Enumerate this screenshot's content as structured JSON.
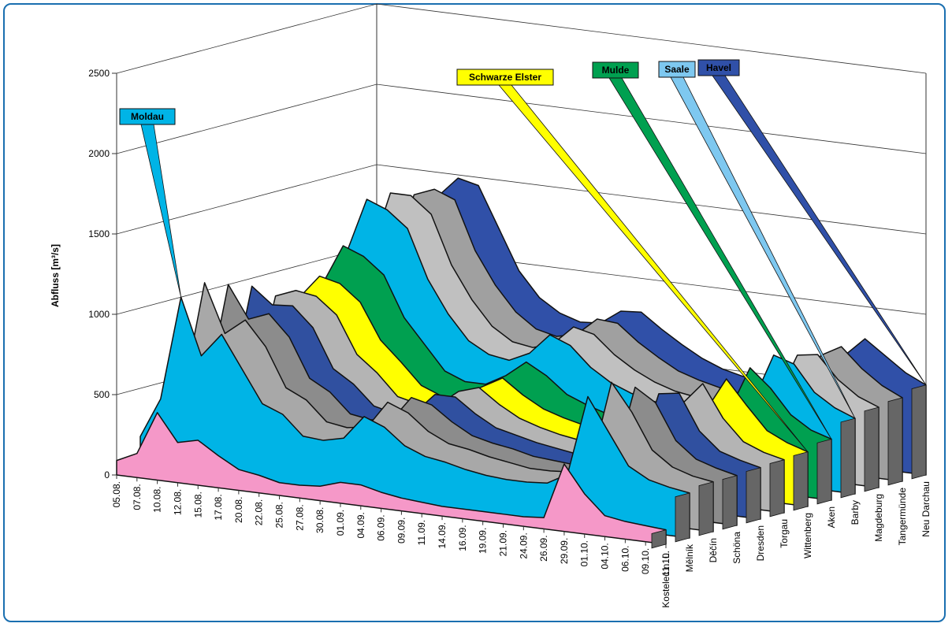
{
  "chart_data": {
    "type": "ribbon3d",
    "ylabel": "Abfluss [m³/s]",
    "ylim": [
      0,
      2500
    ],
    "yticks": [
      0,
      500,
      1000,
      1500,
      2000,
      2500
    ],
    "grid": true,
    "categories": [
      "05.08.",
      "07.08.",
      "10.08.",
      "12.08.",
      "15.08.",
      "17.08.",
      "20.08.",
      "22.08.",
      "25.08.",
      "27.08.",
      "30.08.",
      "01.09.",
      "04.09.",
      "06.09.",
      "09.09.",
      "11.09.",
      "14.09.",
      "16.09.",
      "19.09.",
      "21.09.",
      "24.09.",
      "26.09.",
      "29.09.",
      "01.10.",
      "04.10.",
      "06.10.",
      "09.10.",
      "11.10."
    ],
    "series": [
      {
        "name": "Kostelec n. L.",
        "color": "#f598c8",
        "values": [
          90,
          150,
          420,
          250,
          280,
          200,
          130,
          110,
          80,
          80,
          90,
          130,
          130,
          100,
          80,
          70,
          60,
          60,
          60,
          60,
          60,
          70,
          420,
          250,
          130,
          110,
          100,
          90
        ]
      },
      {
        "name": "Mělník",
        "color": "#00b4e6",
        "values": [
          200,
          450,
          1100,
          750,
          900,
          700,
          500,
          450,
          330,
          320,
          350,
          500,
          450,
          350,
          300,
          280,
          250,
          230,
          220,
          220,
          230,
          300,
          800,
          600,
          400,
          330,
          300,
          280
        ]
      },
      {
        "name": "Děčín",
        "color": "#a8a8a8",
        "values": [
          230,
          480,
          1150,
          850,
          950,
          800,
          560,
          500,
          380,
          360,
          380,
          550,
          500,
          400,
          340,
          320,
          290,
          270,
          250,
          250,
          260,
          320,
          850,
          680,
          460,
          370,
          330,
          310
        ]
      },
      {
        "name": "Schöna",
        "color": "#8c8c8c",
        "values": [
          220,
          450,
          1100,
          900,
          950,
          820,
          580,
          510,
          390,
          370,
          380,
          540,
          510,
          420,
          350,
          320,
          300,
          270,
          260,
          250,
          260,
          300,
          780,
          700,
          480,
          380,
          340,
          310
        ]
      },
      {
        "name": "Dresden",
        "color": "#3050a0",
        "values": [
          230,
          430,
          1050,
          950,
          960,
          840,
          600,
          520,
          400,
          370,
          390,
          520,
          520,
          430,
          360,
          330,
          300,
          280,
          260,
          250,
          260,
          290,
          700,
          720,
          500,
          390,
          350,
          320
        ]
      },
      {
        "name": "Torgau",
        "color": "#b4b4b4",
        "values": [
          250,
          400,
          950,
          1000,
          980,
          880,
          650,
          550,
          420,
          390,
          400,
          500,
          540,
          450,
          380,
          340,
          310,
          290,
          270,
          260,
          265,
          285,
          600,
          740,
          540,
          410,
          360,
          330
        ]
      },
      {
        "name": "Wittenberg",
        "color": "#ffff00",
        "values": [
          300,
          420,
          900,
          1050,
          1020,
          920,
          700,
          580,
          450,
          400,
          410,
          490,
          560,
          470,
          400,
          360,
          330,
          300,
          280,
          270,
          270,
          290,
          520,
          730,
          580,
          440,
          380,
          340
        ]
      },
      {
        "name": "Aken",
        "color": "#00a050",
        "values": [
          400,
          500,
          950,
          1200,
          1150,
          1050,
          800,
          650,
          500,
          450,
          450,
          520,
          620,
          550,
          450,
          400,
          360,
          330,
          310,
          300,
          300,
          310,
          480,
          760,
          650,
          500,
          420,
          380
        ]
      },
      {
        "name": "Barby",
        "color": "#00b4e6",
        "values": [
          600,
          700,
          1100,
          1450,
          1400,
          1300,
          1000,
          800,
          650,
          580,
          560,
          620,
          750,
          700,
          580,
          500,
          450,
          420,
          400,
          380,
          380,
          390,
          500,
          800,
          760,
          600,
          520,
          470
        ]
      },
      {
        "name": "Magdeburg",
        "color": "#c0c0c0",
        "values": [
          650,
          720,
          1050,
          1450,
          1450,
          1350,
          1050,
          850,
          700,
          620,
          600,
          640,
          760,
          730,
          620,
          540,
          480,
          440,
          420,
          400,
          390,
          400,
          480,
          760,
          780,
          640,
          550,
          500
        ]
      },
      {
        "name": "Tangermünde",
        "color": "#a0a0a0",
        "values": [
          700,
          760,
          1000,
          1400,
          1450,
          1400,
          1100,
          900,
          750,
          660,
          630,
          660,
          770,
          760,
          660,
          580,
          510,
          470,
          440,
          420,
          410,
          410,
          470,
          720,
          790,
          670,
          580,
          520
        ]
      },
      {
        "name": "Neu Darchau",
        "color": "#3050a8",
        "values": [
          800,
          850,
          1000,
          1350,
          1480,
          1450,
          1200,
          950,
          800,
          720,
          680,
          690,
          780,
          790,
          700,
          620,
          550,
          500,
          470,
          450,
          430,
          430,
          460,
          680,
          800,
          710,
          620,
          560
        ]
      }
    ],
    "annotations": [
      {
        "text": "Moldau",
        "color": "#00b4e6"
      },
      {
        "text": "Schwarze Elster",
        "color": "#ffff00"
      },
      {
        "text": "Mulde",
        "color": "#00a050"
      },
      {
        "text": "Saale",
        "color": "#7ec8f0"
      },
      {
        "text": "Havel",
        "color": "#3050a8"
      }
    ]
  }
}
